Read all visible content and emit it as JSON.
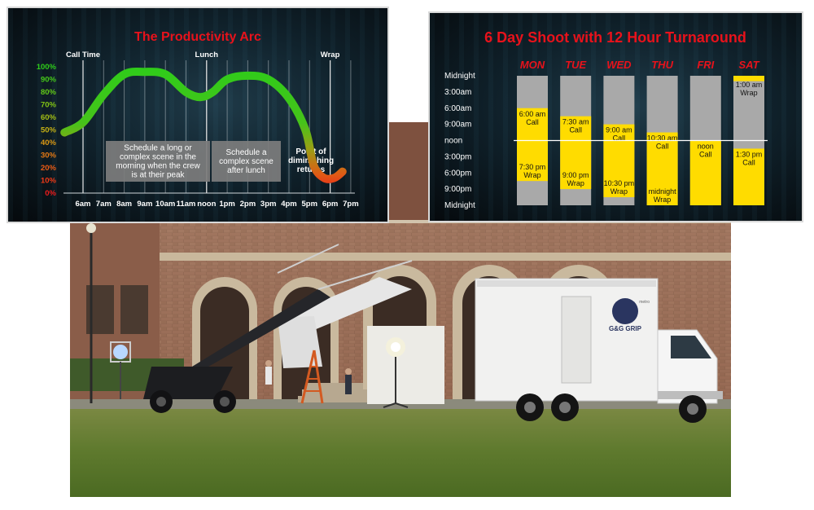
{
  "chart_data": [
    {
      "type": "line",
      "title": "The Productivity Arc",
      "xlabel": "",
      "ylabel": "",
      "x": [
        "6am",
        "7am",
        "8am",
        "9am",
        "10am",
        "11am",
        "noon",
        "1pm",
        "2pm",
        "3pm",
        "4pm",
        "5pm",
        "6pm",
        "7pm"
      ],
      "y_ticks": [
        "0%",
        "10%",
        "20%",
        "30%",
        "40%",
        "50%",
        "60%",
        "70%",
        "80%",
        "90%",
        "100%"
      ],
      "ylim": [
        0,
        100
      ],
      "grid": true,
      "series": [
        {
          "points": [
            [
              5.1,
              48
            ],
            [
              6,
              56
            ],
            [
              7,
              78
            ],
            [
              8,
              94
            ],
            [
              9,
              96
            ],
            [
              10,
              94
            ],
            [
              11,
              80
            ],
            [
              11.7,
              76
            ],
            [
              12.3,
              80
            ],
            [
              13,
              90
            ],
            [
              14,
              93
            ],
            [
              15,
              90
            ],
            [
              16,
              75
            ],
            [
              16.8,
              50
            ],
            [
              17.2,
              22
            ],
            [
              17.7,
              12
            ],
            [
              18.2,
              12
            ],
            [
              18.6,
              17
            ]
          ]
        }
      ],
      "markers": [
        {
          "label": "Call Time",
          "x": 6
        },
        {
          "label": "Lunch",
          "x": 12
        },
        {
          "label": "Wrap",
          "x": 18
        }
      ],
      "annotations": [
        {
          "text": "Schedule a long or complex scene in the morning when the crew is at their peak",
          "lines": [
            "Schedule a long or",
            "complex scene in the",
            "morning when the crew",
            "is at their peak"
          ]
        },
        {
          "text": "Schedule a complex scene after lunch",
          "lines": [
            "Schedule a",
            "complex scene",
            "after lunch"
          ]
        },
        {
          "text": "Point of diminishing returns",
          "lines": [
            "Point of",
            "diminishing",
            "returns"
          ]
        }
      ],
      "colors": {
        "title": "#e8121b",
        "line_high": "#2ecc1a",
        "line_low": "#ee1c1c",
        "box": "#7d7d7d"
      }
    },
    {
      "type": "bar",
      "title": "6 Day Shoot with 12 Hour Turnaround",
      "categories": [
        "MON",
        "TUE",
        "WED",
        "THU",
        "FRI",
        "SAT"
      ],
      "y_labels": [
        "Midnight",
        "3:00am",
        "6:00am",
        "9:00am",
        "noon",
        "3:00pm",
        "6:00pm",
        "9:00pm",
        "Midnight"
      ],
      "ylim": [
        0,
        24
      ],
      "series": [
        {
          "name": "Work",
          "values": [
            {
              "call": 6,
              "wrap": 19.5,
              "call_lines": [
                "6:00 am",
                "Call"
              ],
              "wrap_lines": [
                "7:30 pm",
                "Wrap"
              ]
            },
            {
              "call": 7.5,
              "wrap": 21,
              "call_lines": [
                "7:30 am",
                "Call"
              ],
              "wrap_lines": [
                "9:00 pm",
                "Wrap"
              ]
            },
            {
              "call": 9,
              "wrap": 22.5,
              "call_lines": [
                "9:00 am",
                "Call"
              ],
              "wrap_lines": [
                "10:30 pm",
                "Wrap"
              ]
            },
            {
              "call": 10.5,
              "wrap": 24,
              "call_lines": [
                "10:30 am",
                "Call"
              ],
              "wrap_lines": [
                "midnight",
                "Wrap"
              ]
            },
            {
              "call": 12,
              "wrap": 24,
              "call_lines": [
                "noon",
                "Call"
              ],
              "wrap_lines": []
            },
            {
              "call": 13.5,
              "wrap": 24,
              "call_lines": [
                "1:30 pm",
                "Call"
              ],
              "wrap_lines": [],
              "carry_over_wrap": 1,
              "carry_lines": [
                "1:00 am",
                "Wrap"
              ]
            }
          ]
        }
      ],
      "colors": {
        "title": "#e8121b",
        "work": "#ffdc00",
        "rest": "#a9a9a9",
        "day": "#e8121b"
      }
    }
  ],
  "photo": {
    "truck_logo": "G&G GRIP",
    "truck_brand": "metro"
  }
}
